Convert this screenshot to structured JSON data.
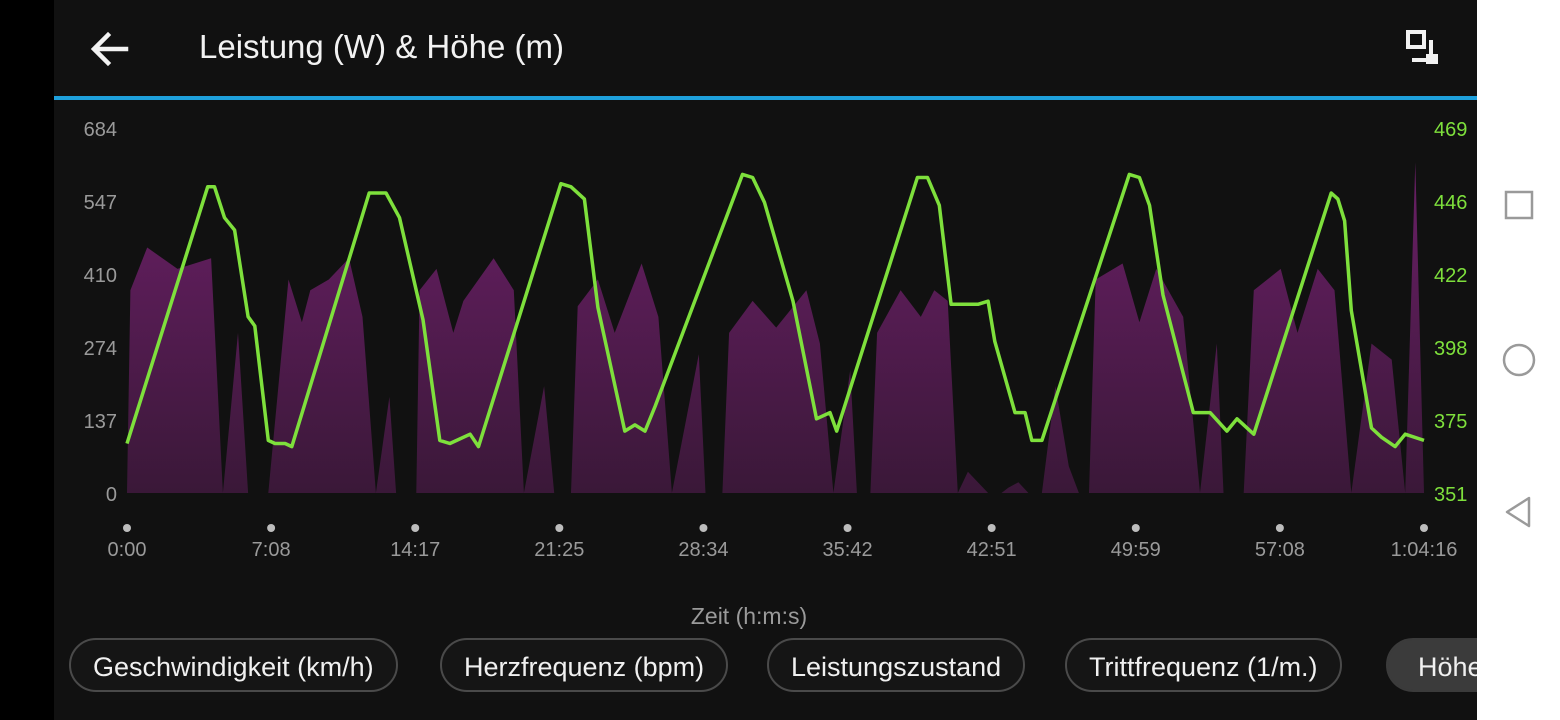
{
  "header": {
    "title": "Leistung (W) & Höhe (m)",
    "accent_color": "#1ea0dc",
    "back_icon": "arrow-left-icon",
    "expand_icon": "expand-icon"
  },
  "chart_data": {
    "type": "area",
    "xlabel": "Zeit (h:m:s)",
    "x_ticks": [
      "0:00",
      "7:08",
      "14:17",
      "21:25",
      "28:34",
      "35:42",
      "42:51",
      "49:59",
      "57:08",
      "1:04:16"
    ],
    "x_range_seconds": [
      0,
      3856
    ],
    "y_left": {
      "ticks": [
        "684",
        "547",
        "410",
        "274",
        "137",
        "0"
      ],
      "range": [
        0,
        684
      ],
      "color": "#9a9a9a"
    },
    "y_right": {
      "ticks": [
        "469",
        "446",
        "422",
        "398",
        "375",
        "351"
      ],
      "range": [
        351,
        469
      ],
      "color": "#7ee03c"
    },
    "grid": false,
    "series": [
      {
        "color": "#5a1e55",
        "axis": "left",
        "type": "area",
        "points": [
          [
            0,
            0
          ],
          [
            10,
            380
          ],
          [
            60,
            460
          ],
          [
            150,
            420
          ],
          [
            250,
            440
          ],
          [
            285,
            0
          ],
          [
            330,
            300
          ],
          [
            360,
            0
          ],
          [
            390,
            0
          ],
          [
            420,
            0
          ],
          [
            480,
            400
          ],
          [
            520,
            320
          ],
          [
            545,
            380
          ],
          [
            600,
            400
          ],
          [
            660,
            440
          ],
          [
            700,
            330
          ],
          [
            740,
            0
          ],
          [
            780,
            180
          ],
          [
            800,
            0
          ],
          [
            860,
            0
          ],
          [
            870,
            380
          ],
          [
            920,
            420
          ],
          [
            970,
            300
          ],
          [
            1000,
            360
          ],
          [
            1090,
            440
          ],
          [
            1150,
            380
          ],
          [
            1180,
            0
          ],
          [
            1240,
            200
          ],
          [
            1270,
            0
          ],
          [
            1320,
            0
          ],
          [
            1340,
            350
          ],
          [
            1400,
            400
          ],
          [
            1450,
            300
          ],
          [
            1530,
            430
          ],
          [
            1580,
            330
          ],
          [
            1620,
            0
          ],
          [
            1700,
            260
          ],
          [
            1720,
            0
          ],
          [
            1770,
            0
          ],
          [
            1790,
            300
          ],
          [
            1860,
            360
          ],
          [
            1930,
            310
          ],
          [
            2020,
            380
          ],
          [
            2060,
            280
          ],
          [
            2100,
            0
          ],
          [
            2150,
            230
          ],
          [
            2170,
            0
          ],
          [
            2210,
            0
          ],
          [
            2230,
            300
          ],
          [
            2300,
            380
          ],
          [
            2360,
            330
          ],
          [
            2400,
            380
          ],
          [
            2440,
            360
          ],
          [
            2470,
            0
          ],
          [
            2500,
            40
          ],
          [
            2560,
            0
          ],
          [
            2600,
            0
          ],
          [
            2620,
            10
          ],
          [
            2650,
            20
          ],
          [
            2680,
            0
          ],
          [
            2720,
            0
          ],
          [
            2760,
            200
          ],
          [
            2800,
            50
          ],
          [
            2830,
            0
          ],
          [
            2860,
            0
          ],
          [
            2880,
            400
          ],
          [
            2960,
            430
          ],
          [
            3010,
            320
          ],
          [
            3060,
            420
          ],
          [
            3140,
            330
          ],
          [
            3190,
            0
          ],
          [
            3240,
            280
          ],
          [
            3260,
            0
          ],
          [
            3320,
            0
          ],
          [
            3350,
            380
          ],
          [
            3430,
            420
          ],
          [
            3480,
            300
          ],
          [
            3540,
            420
          ],
          [
            3590,
            380
          ],
          [
            3640,
            0
          ],
          [
            3700,
            280
          ],
          [
            3760,
            250
          ],
          [
            3800,
            0
          ],
          [
            3830,
            620
          ],
          [
            3856,
            0
          ]
        ]
      },
      {
        "color": "#7ee03c",
        "axis": "right",
        "type": "line",
        "points": [
          [
            0,
            367
          ],
          [
            240,
            450
          ],
          [
            260,
            450
          ],
          [
            290,
            440
          ],
          [
            320,
            436
          ],
          [
            360,
            408
          ],
          [
            380,
            405
          ],
          [
            420,
            368
          ],
          [
            440,
            367
          ],
          [
            470,
            367
          ],
          [
            490,
            366
          ],
          [
            720,
            448
          ],
          [
            770,
            448
          ],
          [
            810,
            440
          ],
          [
            880,
            407
          ],
          [
            930,
            368
          ],
          [
            960,
            367
          ],
          [
            1020,
            370
          ],
          [
            1045,
            366
          ],
          [
            1290,
            451
          ],
          [
            1320,
            450
          ],
          [
            1360,
            446
          ],
          [
            1400,
            411
          ],
          [
            1480,
            371
          ],
          [
            1510,
            373
          ],
          [
            1540,
            371
          ],
          [
            1570,
            379
          ],
          [
            1830,
            454
          ],
          [
            1860,
            453
          ],
          [
            1895,
            445
          ],
          [
            1980,
            413
          ],
          [
            2050,
            375
          ],
          [
            2090,
            377
          ],
          [
            2110,
            371
          ],
          [
            2350,
            453
          ],
          [
            2380,
            453
          ],
          [
            2415,
            444
          ],
          [
            2450,
            412
          ],
          [
            2530,
            412
          ],
          [
            2560,
            413
          ],
          [
            2580,
            400
          ],
          [
            2640,
            377
          ],
          [
            2670,
            377
          ],
          [
            2690,
            368
          ],
          [
            2720,
            368
          ],
          [
            2980,
            454
          ],
          [
            3010,
            453
          ],
          [
            3040,
            444
          ],
          [
            3080,
            415
          ],
          [
            3170,
            377
          ],
          [
            3220,
            377
          ],
          [
            3270,
            371
          ],
          [
            3300,
            375
          ],
          [
            3350,
            370
          ],
          [
            3580,
            448
          ],
          [
            3600,
            446
          ],
          [
            3620,
            439
          ],
          [
            3640,
            410
          ],
          [
            3700,
            372
          ],
          [
            3730,
            369
          ],
          [
            3770,
            366
          ],
          [
            3800,
            370
          ],
          [
            3856,
            368
          ]
        ]
      }
    ]
  },
  "chips": [
    {
      "label": "Geschwindigkeit (km/h)",
      "active": false
    },
    {
      "label": "Herzfrequenz (bpm)",
      "active": false
    },
    {
      "label": "Leistungszustand",
      "active": false
    },
    {
      "label": "Trittfrequenz (1/m.)",
      "active": false
    },
    {
      "label": "Höhe",
      "active": true
    }
  ],
  "nav": {
    "square_icon": "recents-square-icon",
    "circle_icon": "home-circle-icon",
    "triangle_icon": "back-triangle-icon"
  }
}
